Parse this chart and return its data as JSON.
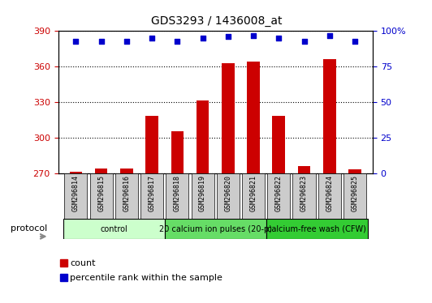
{
  "title": "GDS3293 / 1436008_at",
  "samples": [
    "GSM296814",
    "GSM296815",
    "GSM296816",
    "GSM296817",
    "GSM296818",
    "GSM296819",
    "GSM296820",
    "GSM296821",
    "GSM296822",
    "GSM296823",
    "GSM296824",
    "GSM296825"
  ],
  "counts": [
    271,
    274,
    274,
    318,
    305,
    331,
    363,
    364,
    318,
    276,
    366,
    273
  ],
  "percentile_ranks": [
    93,
    93,
    93,
    95,
    93,
    95,
    96,
    97,
    95,
    93,
    97,
    93
  ],
  "ylim_left": [
    270,
    390
  ],
  "ylim_right": [
    0,
    100
  ],
  "yticks_left": [
    270,
    300,
    330,
    360,
    390
  ],
  "yticks_right": [
    0,
    25,
    50,
    75,
    100
  ],
  "bar_color": "#cc0000",
  "dot_color": "#0000cc",
  "bar_bottom": 270,
  "groups": [
    {
      "label": "control",
      "start": 0,
      "end": 4,
      "color": "#ccffcc"
    },
    {
      "label": "20 calcium ion pulses (20-p)",
      "start": 4,
      "end": 8,
      "color": "#66dd66"
    },
    {
      "label": "calcium-free wash (CFW)",
      "start": 8,
      "end": 12,
      "color": "#33cc33"
    }
  ],
  "protocol_label": "protocol",
  "legend_count_label": "count",
  "legend_percentile_label": "percentile rank within the sample",
  "tick_label_color_left": "#cc0000",
  "tick_label_color_right": "#0000cc",
  "tick_box_color": "#cccccc",
  "grid_color": "black",
  "bar_width": 0.5
}
